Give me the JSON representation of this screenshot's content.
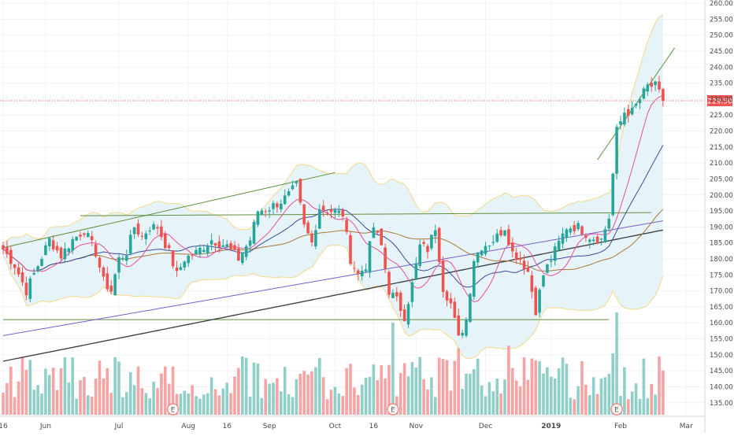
{
  "chart_data": {
    "type": "candlestick",
    "title": "",
    "ylim": [
      131,
      261
    ],
    "y_ticks": [
      135,
      140,
      145,
      150,
      155,
      160,
      165,
      170,
      175,
      180,
      185,
      190,
      195,
      200,
      205,
      210,
      215,
      220,
      225,
      230,
      235,
      240,
      245,
      250,
      255,
      260
    ],
    "y_tick_labels": [
      "135.00",
      "140.00",
      "145.00",
      "150.00",
      "155.00",
      "160.00",
      "165.00",
      "170.00",
      "175.00",
      "180.00",
      "185.00",
      "190.00",
      "195.00",
      "200.00",
      "205.00",
      "210.00",
      "215.00",
      "220.00",
      "225.00",
      "230.00",
      "235.00",
      "240.00",
      "245.00",
      "250.00",
      "255.00",
      "260.00"
    ],
    "x_ticks": [
      {
        "label": "16",
        "bar": 0,
        "bold": false
      },
      {
        "label": "Jun",
        "bar": 11,
        "bold": false
      },
      {
        "label": "Jul",
        "bar": 30,
        "bold": false
      },
      {
        "label": "Aug",
        "bar": 48,
        "bold": false
      },
      {
        "label": "16",
        "bar": 58,
        "bold": false
      },
      {
        "label": "Sep",
        "bar": 69,
        "bold": false
      },
      {
        "label": "Oct",
        "bar": 86,
        "bold": false
      },
      {
        "label": "16",
        "bar": 96,
        "bold": false
      },
      {
        "label": "Nov",
        "bar": 107,
        "bold": false
      },
      {
        "label": "Dec",
        "bar": 125,
        "bold": false
      },
      {
        "label": "2019",
        "bar": 142,
        "bold": true
      },
      {
        "label": "Feb",
        "bar": 160,
        "bold": false
      },
      {
        "label": "Mar",
        "bar": 177,
        "bold": false
      }
    ],
    "last_price": 229.5,
    "last_price_label": "229.50",
    "earnings_label": "E",
    "earnings_bars": [
      44,
      101,
      159
    ],
    "colors": {
      "up": "#26a69a",
      "down": "#ef5350",
      "vol_up": "#8fcfc8",
      "vol_down": "#f5a3a3",
      "band_fill": "#e6f4f9",
      "band_line": "#f4d98b",
      "ma_fast": "#e84d98",
      "ma_mid": "#3b4b9b",
      "ma_slow": "#a8793a",
      "ma_long": "#7a60c8",
      "ma_longest": "#424242",
      "trendline": "#5f8f3d",
      "last_price": "#ef5350",
      "grid": "#f0f3fa",
      "axis_text": "#4a4a4a"
    },
    "x_start_date": "2018-05-16",
    "bars_count": 172,
    "volume_range": [
      0,
      4.0
    ],
    "trendlines": [
      {
        "name": "upper-channel",
        "from": [
          0,
          183.5
        ],
        "to": [
          86,
          207
        ]
      },
      {
        "name": "resistance",
        "from": [
          20,
          193.5
        ],
        "to": [
          168,
          194.5
        ]
      },
      {
        "name": "support",
        "from": [
          0,
          161
        ],
        "to": [
          157,
          161
        ]
      },
      {
        "name": "breakout-channel",
        "from": [
          154,
          211
        ],
        "to": [
          174,
          246
        ]
      }
    ],
    "path_anchors": [
      [
        0,
        183
      ],
      [
        3,
        178
      ],
      [
        6,
        170
      ],
      [
        9,
        178
      ],
      [
        12,
        186
      ],
      [
        15,
        181
      ],
      [
        18,
        186
      ],
      [
        21,
        189
      ],
      [
        24,
        182
      ],
      [
        26,
        173
      ],
      [
        28,
        170
      ],
      [
        30,
        180
      ],
      [
        32,
        182
      ],
      [
        34,
        190
      ],
      [
        36,
        187
      ],
      [
        38,
        190
      ],
      [
        40,
        190
      ],
      [
        43,
        182
      ],
      [
        45,
        175
      ],
      [
        47,
        180
      ],
      [
        50,
        182
      ],
      [
        54,
        186
      ],
      [
        58,
        184
      ],
      [
        61,
        180
      ],
      [
        64,
        186
      ],
      [
        66,
        195
      ],
      [
        69,
        196
      ],
      [
        72,
        198
      ],
      [
        74,
        200
      ],
      [
        76,
        203
      ],
      [
        78,
        190
      ],
      [
        80,
        185
      ],
      [
        82,
        196
      ],
      [
        85,
        195
      ],
      [
        88,
        194
      ],
      [
        90,
        180
      ],
      [
        92,
        175
      ],
      [
        94,
        178
      ],
      [
        96,
        190
      ],
      [
        98,
        184
      ],
      [
        100,
        170
      ],
      [
        102,
        167
      ],
      [
        104,
        162
      ],
      [
        106,
        172
      ],
      [
        108,
        184
      ],
      [
        110,
        183
      ],
      [
        112,
        190
      ],
      [
        114,
        171
      ],
      [
        116,
        166
      ],
      [
        118,
        155
      ],
      [
        120,
        161
      ],
      [
        122,
        180
      ],
      [
        124,
        184
      ],
      [
        126,
        185
      ],
      [
        128,
        187
      ],
      [
        130,
        190
      ],
      [
        132,
        182
      ],
      [
        134,
        180
      ],
      [
        136,
        176
      ],
      [
        138,
        164
      ],
      [
        140,
        175
      ],
      [
        142,
        180
      ],
      [
        144,
        185
      ],
      [
        146,
        190
      ],
      [
        149,
        190
      ],
      [
        152,
        187
      ],
      [
        155,
        186
      ],
      [
        157,
        193
      ],
      [
        159,
        220
      ],
      [
        161,
        226
      ],
      [
        163,
        226
      ],
      [
        165,
        230
      ],
      [
        167,
        234
      ],
      [
        169,
        234
      ],
      [
        171,
        229.5
      ]
    ]
  }
}
